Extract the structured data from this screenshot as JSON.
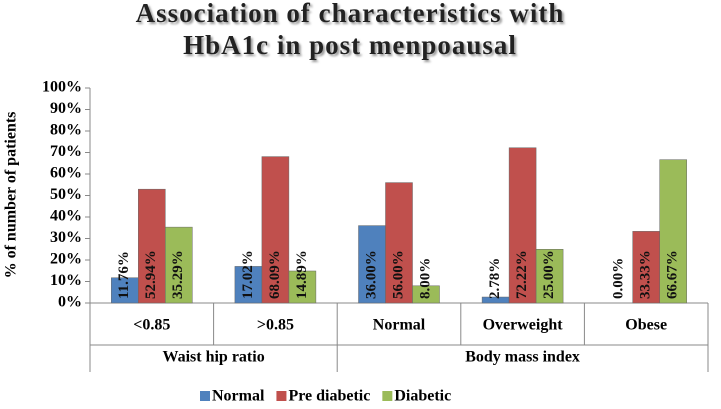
{
  "chart_data": {
    "type": "bar",
    "title": [
      "Association of characteristics with",
      "HbA1c in post menpoausal"
    ],
    "ylabel": "% of number of patients",
    "groups": [
      {
        "name": "Waist hip ratio",
        "categories": [
          "<0.85",
          ">0.85"
        ]
      },
      {
        "name": "Body mass index",
        "categories": [
          "Normal",
          "Overweight",
          "Obese"
        ]
      }
    ],
    "series": [
      {
        "name": "Normal",
        "color": "#4f81bd",
        "values": [
          11.76,
          17.02,
          36.0,
          2.78,
          0.0
        ],
        "value_labels": [
          "11.76%",
          "17.02%",
          "36.00%",
          "2.78%",
          "0.00%"
        ]
      },
      {
        "name": "Pre diabetic",
        "color": "#c0504d",
        "values": [
          52.94,
          68.09,
          56.0,
          72.22,
          33.33
        ],
        "value_labels": [
          "52.94%",
          "68.09%",
          "56.00%",
          "72.22%",
          "33.33%"
        ]
      },
      {
        "name": "Diabetic",
        "color": "#9bbb59",
        "values": [
          35.29,
          14.89,
          8.0,
          25.0,
          66.67
        ],
        "value_labels": [
          "35.29%",
          "14.89%",
          "8.00%",
          "25.00%",
          "66.67%"
        ]
      }
    ],
    "ylim": [
      0,
      100
    ],
    "yticks": [
      {
        "value": 0,
        "label": "0%"
      },
      {
        "value": 10,
        "label": "10%"
      },
      {
        "value": 20,
        "label": "20%"
      },
      {
        "value": 30,
        "label": "30%"
      },
      {
        "value": 40,
        "label": "40%"
      },
      {
        "value": 50,
        "label": "50%"
      },
      {
        "value": 60,
        "label": "60%"
      },
      {
        "value": 70,
        "label": "70%"
      },
      {
        "value": 80,
        "label": "80%"
      },
      {
        "value": 90,
        "label": "90%"
      },
      {
        "value": 100,
        "label": "100%"
      }
    ],
    "legend": "bottom"
  }
}
